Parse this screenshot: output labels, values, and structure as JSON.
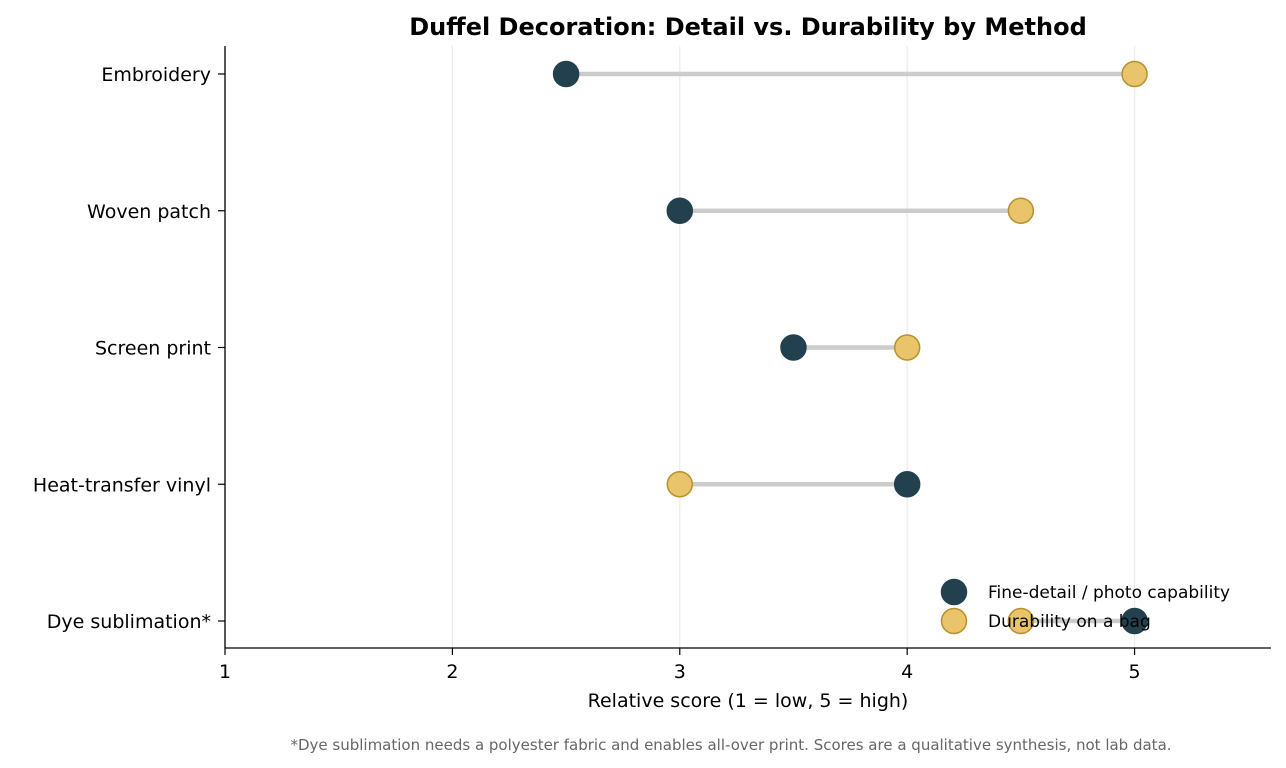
{
  "chart_data": {
    "type": "dumbbell",
    "title": "Duffel Decoration: Detail vs. Durability by Method",
    "xlabel": "Relative score (1 = low, 5 = high)",
    "ylabel": "",
    "xlim": [
      1,
      5.6
    ],
    "xticks": [
      "1",
      "2",
      "3",
      "4",
      "5"
    ],
    "grid": "vertical",
    "legend_position": "bottom-right",
    "categories": [
      "Embroidery",
      "Woven patch",
      "Screen print",
      "Heat-transfer vinyl",
      "Dye sublimation*"
    ],
    "series": [
      {
        "name": "Fine-detail / photo capability",
        "color": "#23404f",
        "values": [
          2.5,
          3.0,
          3.5,
          4.0,
          5.0
        ]
      },
      {
        "name": "Durability on a bag",
        "color": "#e9c46a",
        "values": [
          5.0,
          4.5,
          4.0,
          3.0,
          4.5
        ]
      }
    ],
    "connector_color": "#cccccc",
    "footnote": "*Dye sublimation needs a polyester fabric and enables all-over print. Scores are a qualitative synthesis, not lab data."
  }
}
